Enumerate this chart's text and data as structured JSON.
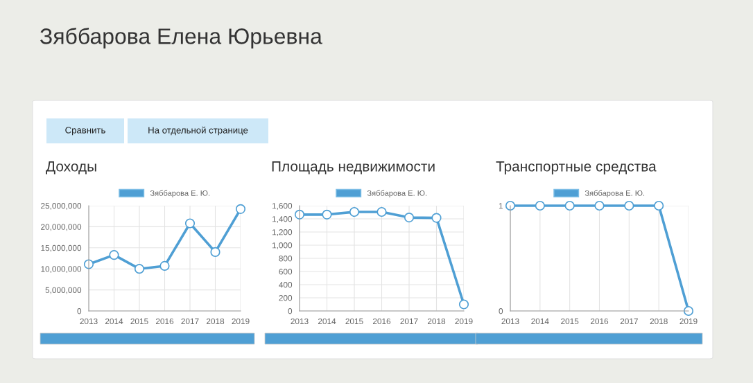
{
  "chart_data": [
    {
      "type": "other",
      "title": "Зяббарова Елена Юрьевна",
      "annotations": [
        "Сравнить",
        "На отдельной странице"
      ]
    },
    {
      "type": "line",
      "title": "Доходы",
      "categories": [
        "2013",
        "2014",
        "2015",
        "2016",
        "2017",
        "2018",
        "2019"
      ],
      "series": [
        {
          "name": "Зяббарова Е. Ю.",
          "color": "#4f9fd4",
          "values": [
            11100000,
            13300000,
            10000000,
            10700000,
            20800000,
            14000000,
            24200000
          ]
        }
      ],
      "ylim": [
        0,
        25000000
      ],
      "yticks": [
        0,
        {
          "value": 5000000,
          "label": "5,000,000"
        },
        {
          "value": 10000000,
          "label": "10,000,000"
        },
        {
          "value": 15000000,
          "label": "15,000,000"
        },
        {
          "value": 20000000,
          "label": "20,000,000"
        },
        {
          "value": 25000000,
          "label": "25,000,000"
        }
      ],
      "grid": true,
      "legend": "top",
      "marker": "circle",
      "line_style": "solid"
    },
    {
      "type": "line",
      "title": "Площадь недвижимости",
      "categories": [
        "2013",
        "2014",
        "2015",
        "2016",
        "2017",
        "2018",
        "2019"
      ],
      "series": [
        {
          "name": "Зяббарова Е. Ю.",
          "color": "#4f9fd4",
          "values": [
            1465,
            1465,
            1505,
            1505,
            1420,
            1415,
            100
          ]
        }
      ],
      "ylim": [
        0,
        1600
      ],
      "yticks": [
        0,
        200,
        400,
        600,
        800,
        {
          "value": 1000,
          "label": "1,000"
        },
        {
          "value": 1200,
          "label": "1,200"
        },
        {
          "value": 1400,
          "label": "1,400"
        },
        {
          "value": 1600,
          "label": "1,600"
        }
      ],
      "grid": true,
      "legend": "top",
      "marker": "circle",
      "line_style": "solid"
    },
    {
      "type": "line",
      "title": "Транспортные средства",
      "categories": [
        "2013",
        "2014",
        "2015",
        "2016",
        "2017",
        "2018",
        "2019"
      ],
      "series": [
        {
          "name": "Зяббарова Е. Ю.",
          "color": "#4f9fd4",
          "values": [
            1,
            1,
            1,
            1,
            1,
            1,
            0
          ]
        }
      ],
      "ylim": [
        0,
        1
      ],
      "yticks": [
        0,
        1
      ],
      "grid": true,
      "legend": "top",
      "marker": "circle",
      "line_style": "solid"
    }
  ]
}
